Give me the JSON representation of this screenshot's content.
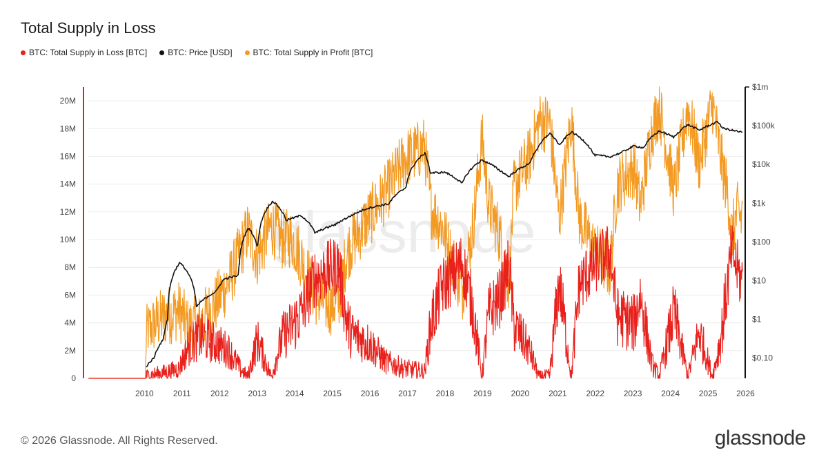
{
  "header": {
    "title": "Total Supply in Loss"
  },
  "legend": [
    {
      "label": "BTC: Total Supply in Loss [BTC]",
      "color": "#e8211c"
    },
    {
      "label": "BTC: Price [USD]",
      "color": "#111111"
    },
    {
      "label": "BTC: Total Supply in Profit [BTC]",
      "color": "#f39a22"
    }
  ],
  "footer": {
    "copyright": "© 2026 Glassnode. All Rights Reserved.",
    "brand": "glassnode"
  },
  "watermark": "glassnode",
  "chart_data": {
    "type": "line",
    "x_range": [
      "2009-01-01",
      "2026-06-01"
    ],
    "x_ticks": [
      "2010",
      "2011",
      "2012",
      "2013",
      "2014",
      "2015",
      "2016",
      "2017",
      "2018",
      "2019",
      "2020",
      "2021",
      "2022",
      "2023",
      "2024",
      "2025",
      "2026"
    ],
    "y_left": {
      "range": [
        0,
        21000000
      ],
      "ticks": [
        0,
        2000000,
        4000000,
        6000000,
        8000000,
        10000000,
        12000000,
        14000000,
        16000000,
        18000000,
        20000000
      ],
      "tick_labels": [
        "0",
        "2M",
        "4M",
        "6M",
        "8M",
        "10M",
        "12M",
        "14M",
        "16M",
        "18M",
        "20M"
      ]
    },
    "y_right": {
      "scale": "log",
      "range": [
        0.03,
        1000000
      ],
      "ticks": [
        0.1,
        1,
        10,
        100,
        1000,
        10000,
        100000,
        1000000
      ],
      "tick_labels": [
        "$0.10",
        "$1",
        "$10",
        "$100",
        "$1k",
        "$10k",
        "$100k",
        "$1m"
      ]
    },
    "grid": true,
    "series": [
      {
        "name": "BTC: Total Supply in Profit [BTC]",
        "color": "#f39a22",
        "axis": "left",
        "points": [
          [
            "2009-01-03",
            0
          ],
          [
            "2010-07-10",
            0
          ],
          [
            "2010-07-20",
            3400000
          ],
          [
            "2010-10-01",
            3900000
          ],
          [
            "2011-01-01",
            4400000
          ],
          [
            "2011-06-01",
            4900000
          ],
          [
            "2011-09-01",
            3700000
          ],
          [
            "2011-12-15",
            3900000
          ],
          [
            "2012-06-01",
            5500000
          ],
          [
            "2012-10-01",
            7000000
          ],
          [
            "2013-04-01",
            10600000
          ],
          [
            "2013-07-01",
            8800000
          ],
          [
            "2013-11-15",
            11000000
          ],
          [
            "2014-03-01",
            10000000
          ],
          [
            "2014-06-01",
            10100000
          ],
          [
            "2014-09-01",
            8700000
          ],
          [
            "2015-01-15",
            6000000
          ],
          [
            "2015-06-01",
            5200000
          ],
          [
            "2015-09-01",
            5600000
          ],
          [
            "2015-11-15",
            8900000
          ],
          [
            "2016-01-01",
            9700000
          ],
          [
            "2016-07-01",
            11700000
          ],
          [
            "2016-12-01",
            13300000
          ],
          [
            "2017-06-01",
            15800000
          ],
          [
            "2017-12-15",
            16700000
          ],
          [
            "2018-02-15",
            12300000
          ],
          [
            "2018-06-01",
            11000000
          ],
          [
            "2018-12-15",
            6200000
          ],
          [
            "2019-04-01",
            11000000
          ],
          [
            "2019-06-25",
            17300000
          ],
          [
            "2019-09-01",
            12500000
          ],
          [
            "2019-12-15",
            10300000
          ],
          [
            "2020-03-15",
            6800000
          ],
          [
            "2020-05-01",
            13700000
          ],
          [
            "2020-10-01",
            16000000
          ],
          [
            "2020-12-31",
            18500000
          ],
          [
            "2021-04-15",
            18400000
          ],
          [
            "2021-07-15",
            11500000
          ],
          [
            "2021-11-10",
            18700000
          ],
          [
            "2022-01-25",
            11600000
          ],
          [
            "2022-06-18",
            9300000
          ],
          [
            "2022-11-21",
            7800000
          ],
          [
            "2023-01-31",
            13900000
          ],
          [
            "2023-07-15",
            15200000
          ],
          [
            "2023-09-11",
            12400000
          ],
          [
            "2023-12-31",
            17800000
          ],
          [
            "2024-03-14",
            19600000
          ],
          [
            "2024-08-05",
            13500000
          ],
          [
            "2024-12-17",
            19500000
          ],
          [
            "2025-04-07",
            15500000
          ],
          [
            "2025-08-14",
            19800000
          ],
          [
            "2025-11-01",
            16000000
          ],
          [
            "2026-01-15",
            13000000
          ],
          [
            "2026-02-15",
            10300000
          ],
          [
            "2026-04-15",
            12000000
          ],
          [
            "2026-05-20",
            11500000
          ],
          [
            "2026-06-01",
            12300000
          ]
        ]
      },
      {
        "name": "BTC: Total Supply in Loss [BTC]",
        "color": "#e8211c",
        "axis": "left",
        "points": [
          [
            "2009-01-03",
            0
          ],
          [
            "2010-07-10",
            0
          ],
          [
            "2010-07-20",
            200000
          ],
          [
            "2011-01-01",
            400000
          ],
          [
            "2011-06-01",
            700000
          ],
          [
            "2011-09-01",
            2300000
          ],
          [
            "2011-12-15",
            3000000
          ],
          [
            "2012-06-01",
            2500000
          ],
          [
            "2012-10-01",
            2000000
          ],
          [
            "2013-01-15",
            700000
          ],
          [
            "2013-04-01",
            100000
          ],
          [
            "2013-07-01",
            2800000
          ],
          [
            "2013-11-15",
            100000
          ],
          [
            "2014-03-01",
            3000000
          ],
          [
            "2014-06-01",
            3700000
          ],
          [
            "2014-09-01",
            4700000
          ],
          [
            "2015-01-15",
            7300000
          ],
          [
            "2015-06-01",
            7800000
          ],
          [
            "2015-09-01",
            8200000
          ],
          [
            "2015-11-15",
            4200000
          ],
          [
            "2016-01-01",
            3200000
          ],
          [
            "2016-07-01",
            2500000
          ],
          [
            "2016-12-01",
            1200000
          ],
          [
            "2017-06-01",
            700000
          ],
          [
            "2017-12-15",
            500000
          ],
          [
            "2018-02-15",
            4000000
          ],
          [
            "2018-06-01",
            6500000
          ],
          [
            "2018-12-15",
            8400000
          ],
          [
            "2019-04-01",
            4900000
          ],
          [
            "2019-06-25",
            100000
          ],
          [
            "2019-09-01",
            4700000
          ],
          [
            "2019-12-15",
            5800000
          ],
          [
            "2020-03-15",
            8200000
          ],
          [
            "2020-05-01",
            3800000
          ],
          [
            "2020-10-01",
            2000000
          ],
          [
            "2020-12-31",
            100000
          ],
          [
            "2021-04-15",
            200000
          ],
          [
            "2021-07-15",
            7000000
          ],
          [
            "2021-11-10",
            100000
          ],
          [
            "2022-01-25",
            6700000
          ],
          [
            "2022-06-18",
            8200000
          ],
          [
            "2022-11-21",
            9100000
          ],
          [
            "2023-01-31",
            4500000
          ],
          [
            "2023-07-15",
            3900000
          ],
          [
            "2023-09-11",
            6000000
          ],
          [
            "2023-12-31",
            1100000
          ],
          [
            "2024-03-14",
            100000
          ],
          [
            "2024-08-05",
            4800000
          ],
          [
            "2024-12-17",
            100000
          ],
          [
            "2025-04-07",
            3400000
          ],
          [
            "2025-08-14",
            100000
          ],
          [
            "2025-11-01",
            2800000
          ],
          [
            "2026-01-15",
            7200000
          ],
          [
            "2026-02-15",
            9200000
          ],
          [
            "2026-04-15",
            7800000
          ],
          [
            "2026-05-20",
            7000000
          ],
          [
            "2026-06-01",
            7200000
          ]
        ]
      },
      {
        "name": "BTC: Price [USD]",
        "color": "#111111",
        "axis": "right",
        "points": [
          [
            "2010-07-18",
            0.06
          ],
          [
            "2010-10-01",
            0.1
          ],
          [
            "2011-01-01",
            0.3
          ],
          [
            "2011-02-10",
            1
          ],
          [
            "2011-06-08",
            29
          ],
          [
            "2011-11-18",
            2.1
          ],
          [
            "2012-06-01",
            5.3
          ],
          [
            "2012-08-15",
            11
          ],
          [
            "2012-12-31",
            13.5
          ],
          [
            "2013-04-10",
            230
          ],
          [
            "2013-07-05",
            68
          ],
          [
            "2013-11-30",
            1130
          ],
          [
            "2014-04-10",
            360
          ],
          [
            "2014-09-01",
            480
          ],
          [
            "2015-01-14",
            170
          ],
          [
            "2015-08-01",
            280
          ],
          [
            "2015-12-15",
            450
          ],
          [
            "2016-06-15",
            750
          ],
          [
            "2016-12-31",
            960
          ],
          [
            "2017-06-15",
            2500
          ],
          [
            "2017-12-17",
            19500
          ],
          [
            "2018-02-06",
            6000
          ],
          [
            "2018-07-01",
            6300
          ],
          [
            "2018-12-15",
            3200
          ],
          [
            "2019-06-26",
            13000
          ],
          [
            "2019-12-15",
            7000
          ],
          [
            "2020-03-12",
            4800
          ],
          [
            "2020-10-01",
            10500
          ],
          [
            "2020-12-31",
            29000
          ],
          [
            "2021-04-14",
            64000
          ],
          [
            "2021-07-20",
            29800
          ],
          [
            "2021-11-10",
            69000
          ],
          [
            "2022-06-18",
            17600
          ],
          [
            "2022-11-21",
            15700
          ],
          [
            "2023-03-10",
            20000
          ],
          [
            "2023-07-15",
            30000
          ],
          [
            "2023-10-15",
            27000
          ],
          [
            "2024-03-14",
            73000
          ],
          [
            "2024-08-05",
            50000
          ],
          [
            "2024-12-17",
            106000
          ],
          [
            "2025-04-07",
            76000
          ],
          [
            "2025-10-06",
            126000
          ],
          [
            "2025-11-20",
            86000
          ],
          [
            "2026-02-01",
            78000
          ],
          [
            "2026-06-01",
            67000
          ]
        ]
      }
    ]
  }
}
